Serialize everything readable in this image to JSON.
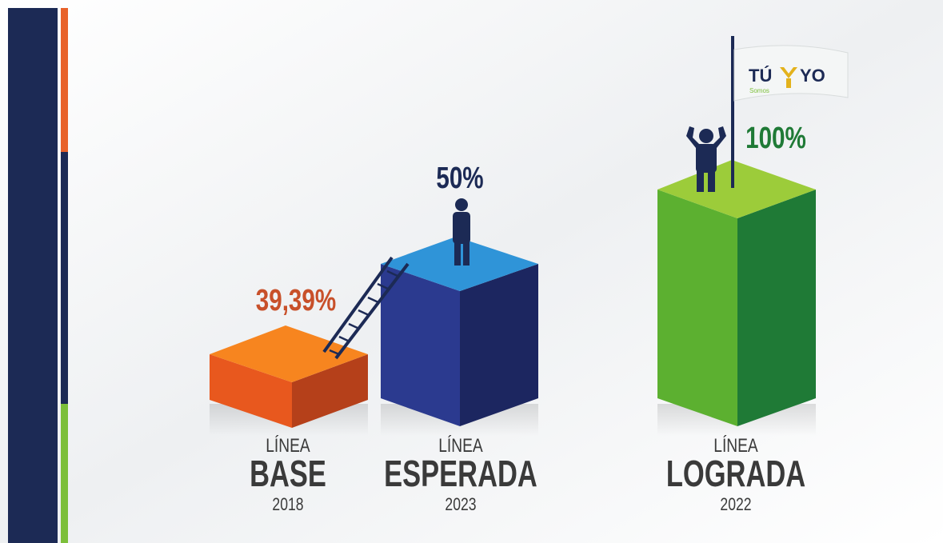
{
  "items": [
    {
      "percent": "39,39%",
      "line": "LÍNEA",
      "name": "BASE",
      "year": "2018"
    },
    {
      "percent": "50%",
      "line": "LÍNEA",
      "name": "ESPERADA",
      "year": "2023"
    },
    {
      "percent": "100%",
      "line": "LÍNEA",
      "name": "LOGRADA",
      "year": "2022"
    }
  ],
  "logo": {
    "left": "TÚ",
    "right": "YO",
    "tagline": "Somos"
  }
}
